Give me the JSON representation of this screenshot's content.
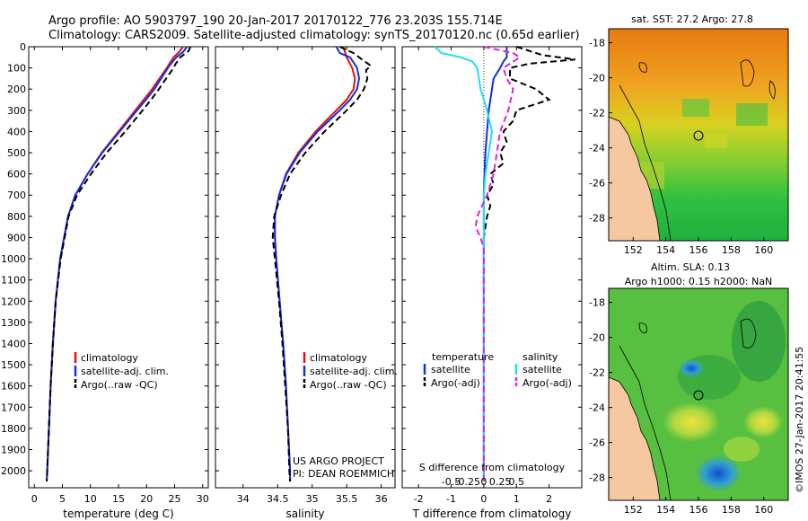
{
  "header": {
    "line1": "Argo profile: AO 5903797_190 20-Jan-2017 20170122_776 23.203S 155.714E",
    "line2": "Climatology: CARS2009. Satellite-adjusted climatology: synTS_20170120.nc (0.65d earlier)"
  },
  "depth_axis": {
    "ticks": [
      0,
      100,
      200,
      300,
      400,
      500,
      600,
      700,
      800,
      900,
      1000,
      1100,
      1200,
      1300,
      1400,
      1500,
      1600,
      1700,
      1800,
      1900,
      2000
    ],
    "range": [
      0,
      2080
    ]
  },
  "colors": {
    "climatology": "#e01010",
    "satellite": "#1030e0",
    "argo": "#000000",
    "cyan": "#20e0f0",
    "magenta": "#e020e0",
    "land": "#f5c8a0"
  },
  "chart_data": [
    {
      "type": "line",
      "name": "temperature",
      "xlabel": "temperature (deg C)",
      "xlim": [
        -1,
        31
      ],
      "xticks": [
        0,
        5,
        10,
        15,
        20,
        25,
        30
      ],
      "series": [
        {
          "name": "climatology",
          "style": "solid",
          "color": "#e01010",
          "depth": [
            0,
            25,
            50,
            75,
            100,
            150,
            200,
            250,
            300,
            400,
            500,
            600,
            700,
            800,
            1000,
            1200,
            1400,
            1600,
            1800,
            2000,
            2050
          ],
          "values": [
            26.5,
            25.8,
            24.8,
            24.2,
            23.6,
            22.3,
            21.0,
            19.5,
            18.0,
            15.0,
            12.0,
            9.5,
            7.3,
            6.0,
            4.6,
            3.8,
            3.3,
            2.9,
            2.6,
            2.3,
            2.2
          ]
        },
        {
          "name": "satellite-adj. clim.",
          "style": "solid",
          "color": "#1030e0",
          "depth": [
            0,
            25,
            50,
            75,
            100,
            150,
            200,
            250,
            300,
            400,
            500,
            600,
            700,
            800,
            1000,
            1200,
            1400,
            1600,
            1800,
            2000,
            2050
          ],
          "values": [
            27.2,
            26.5,
            25.3,
            24.5,
            23.8,
            22.6,
            21.4,
            19.9,
            18.3,
            15.2,
            12.1,
            9.5,
            7.3,
            6.0,
            4.6,
            3.8,
            3.3,
            2.9,
            2.6,
            2.3,
            2.2
          ]
        },
        {
          "name": "Argo(..raw -QC)",
          "style": "dash",
          "color": "#000000",
          "depth": [
            0,
            20,
            50,
            80,
            100,
            150,
            200,
            250,
            300,
            400,
            500,
            600,
            700,
            800,
            1000,
            1200,
            1400,
            1600,
            1800,
            2000,
            2050
          ],
          "values": [
            27.8,
            27.5,
            26.0,
            25.2,
            24.8,
            23.5,
            22.2,
            20.8,
            19.3,
            16.2,
            12.9,
            10.1,
            7.6,
            6.1,
            4.7,
            3.8,
            3.3,
            2.9,
            2.6,
            2.3,
            2.2
          ]
        }
      ],
      "legend": [
        "climatology",
        "satellite-adj. clim.",
        "Argo(..raw -QC)"
      ]
    },
    {
      "type": "line",
      "name": "salinity",
      "xlabel": "salinity",
      "xlim": [
        33.6,
        36.2
      ],
      "xticks": [
        34,
        34.5,
        35,
        35.5,
        36
      ],
      "series": [
        {
          "name": "climatology",
          "style": "solid",
          "color": "#e01010",
          "depth": [
            0,
            50,
            100,
            150,
            200,
            250,
            300,
            400,
            500,
            600,
            700,
            800,
            900,
            1000,
            1200,
            1400,
            1600,
            1800,
            2000,
            2050
          ],
          "values": [
            35.45,
            35.5,
            35.58,
            35.62,
            35.6,
            35.5,
            35.35,
            35.05,
            34.8,
            34.62,
            34.52,
            34.46,
            34.46,
            34.48,
            34.53,
            34.58,
            34.62,
            34.65,
            34.68,
            34.68
          ]
        },
        {
          "name": "satellite-adj. clim.",
          "style": "solid",
          "color": "#1030e0",
          "depth": [
            0,
            30,
            50,
            100,
            150,
            200,
            250,
            300,
            400,
            500,
            600,
            700,
            800,
            900,
            1000,
            1200,
            1400,
            1600,
            1800,
            2000,
            2050
          ],
          "values": [
            35.35,
            35.4,
            35.55,
            35.65,
            35.68,
            35.65,
            35.55,
            35.4,
            35.08,
            34.82,
            34.63,
            34.52,
            34.46,
            34.46,
            34.48,
            34.53,
            34.58,
            34.62,
            34.65,
            34.68,
            34.68
          ]
        },
        {
          "name": "Argo(..raw -QC)",
          "style": "dash",
          "color": "#000000",
          "depth": [
            0,
            30,
            60,
            90,
            110,
            150,
            200,
            250,
            300,
            400,
            500,
            600,
            700,
            800,
            900,
            1000,
            1200,
            1400,
            1600,
            1800,
            2000,
            2050
          ],
          "values": [
            35.4,
            35.6,
            35.72,
            35.85,
            35.78,
            35.8,
            35.75,
            35.65,
            35.5,
            35.18,
            34.9,
            34.68,
            34.55,
            34.45,
            34.43,
            34.46,
            34.52,
            34.57,
            34.61,
            34.65,
            34.67,
            34.68
          ]
        }
      ],
      "legend": [
        "climatology",
        "satellite-adj. clim.",
        "Argo(..raw -QC)"
      ],
      "annotation": [
        "US ARGO PROJECT",
        "PI: DEAN ROEMMICH"
      ]
    },
    {
      "type": "line",
      "name": "difference",
      "xlabel": "T difference from climatology",
      "xlabel_top": "S difference from climatology",
      "xlim": [
        -2.5,
        3.0
      ],
      "xticks": [
        -2,
        -1,
        0,
        1,
        2
      ],
      "s_ticks": [
        -0.5,
        -0.25,
        0,
        0.25,
        0.5
      ],
      "series": [
        {
          "name": "T satellite",
          "style": "solid",
          "color": "#1030e0",
          "depth": [
            0,
            50,
            70,
            100,
            150,
            200,
            250,
            300,
            400,
            500,
            600,
            700,
            800,
            1000,
            1200,
            1500,
            2050
          ],
          "values": [
            0.7,
            0.7,
            0.6,
            0.5,
            0.3,
            0.25,
            0.2,
            0.15,
            0.1,
            0.05,
            0.02,
            0,
            0,
            0,
            0,
            0,
            0
          ]
        },
        {
          "name": "T Argo(-adj)",
          "style": "dash",
          "color": "#000000",
          "depth": [
            0,
            40,
            60,
            80,
            100,
            150,
            200,
            250,
            300,
            350,
            400,
            450,
            500,
            550,
            600,
            650,
            700,
            750,
            800,
            850,
            900,
            1000,
            1100,
            1200,
            1500,
            2050
          ],
          "values": [
            1.0,
            1.8,
            2.8,
            1.4,
            0.8,
            0.8,
            1.6,
            2.0,
            1.0,
            0.9,
            0.6,
            0.7,
            0.5,
            0.6,
            0.2,
            0.3,
            0.1,
            0.2,
            0.1,
            0.05,
            0.0,
            0.0,
            0.0,
            0.0,
            0.0,
            0.0
          ]
        },
        {
          "name": "S satellite",
          "style": "solid",
          "color": "#20e0f0",
          "depth": [
            0,
            30,
            50,
            70,
            100,
            200,
            300,
            400,
            500,
            600,
            700,
            800,
            1000,
            1200,
            1500,
            2050
          ],
          "values": [
            -1.5,
            -1.3,
            -0.7,
            -0.35,
            -0.2,
            -0.1,
            0.1,
            0.25,
            0.15,
            0.05,
            0,
            0,
            0,
            0,
            0,
            0
          ]
        },
        {
          "name": "S Argo(-adj)",
          "style": "dash",
          "color": "#e020e0",
          "depth": [
            0,
            30,
            50,
            80,
            100,
            150,
            200,
            300,
            400,
            500,
            600,
            700,
            800,
            850,
            900,
            950,
            1000,
            1200,
            2050
          ],
          "values": [
            0.0,
            0.9,
            1.1,
            0.8,
            0.6,
            0.7,
            0.9,
            0.75,
            0.5,
            0.4,
            0.3,
            0.1,
            -0.2,
            -0.25,
            -0.1,
            0.0,
            0.0,
            0.0,
            0.0
          ]
        }
      ],
      "legend_temperature_title": "temperature",
      "legend_salinity_title": "salinity",
      "legend_items": {
        "t_sat": "satellite",
        "t_argo": "Argo(-adj)",
        "s_sat": "satellite",
        "s_argo": "Argo(-adj)"
      }
    },
    {
      "type": "heatmap",
      "name": "sst-map",
      "title": "sat. SST: 27.2 Argo: 27.8",
      "xticks": [
        152,
        154,
        156,
        158,
        160
      ],
      "yticks": [
        -18,
        -20,
        -22,
        -24,
        -26,
        -28
      ],
      "xlim": [
        150.5,
        161.5
      ],
      "ylim": [
        -29.3,
        -17.2
      ]
    },
    {
      "type": "heatmap",
      "name": "sla-map",
      "title_line1": "Altim. SLA: 0.13",
      "title_line2": "Argo h1000: 0.15 h2000: NaN",
      "xticks": [
        152,
        154,
        156,
        158,
        160
      ],
      "yticks": [
        -18,
        -20,
        -22,
        -24,
        -26,
        -28
      ],
      "xlim": [
        150.5,
        161.5
      ],
      "ylim": [
        -29.3,
        -17.2
      ]
    }
  ],
  "footer_stamp": "©IMOS 27-Jan-2017 20:41:55"
}
